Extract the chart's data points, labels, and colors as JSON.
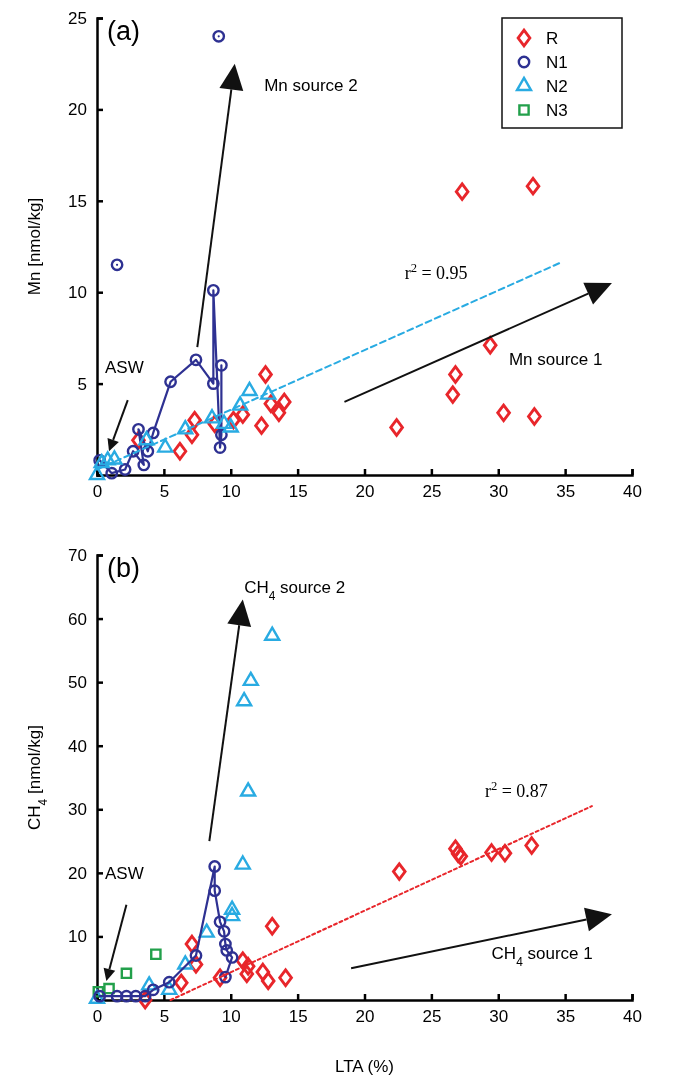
{
  "chart_data": [
    {
      "type": "scatter",
      "title": "(a)",
      "ylabel": "Mn [nmol/kg]",
      "xlim": [
        0,
        40
      ],
      "ylim": [
        0,
        25
      ],
      "xticks": [
        0,
        5,
        10,
        15,
        20,
        25,
        30,
        35,
        40
      ],
      "yticks": [
        {
          "value": 0,
          "label": null
        },
        5,
        10,
        15,
        20,
        25
      ],
      "legend": "top right",
      "annotations": [
        "r$^{2}$ = 0.95",
        "Mn source 2",
        "Mn source 1",
        "ASW"
      ],
      "series": [
        {
          "name": "R",
          "color": "#e8262b",
          "marker": "diamond",
          "x": [
            3.1,
            6.2,
            7.3,
            7.1,
            8.8,
            10.2,
            10.9,
            12.6,
            12.3,
            13,
            14,
            13.6,
            22.4,
            26.8,
            26.6,
            29.4,
            30.4,
            32.7,
            27.3,
            32.6
          ],
          "values": [
            1.9,
            1.3,
            3.0,
            2.2,
            2.8,
            3.0,
            3.3,
            5.5,
            2.7,
            3.9,
            4.0,
            3.4,
            2.6,
            5.5,
            4.4,
            7.1,
            3.4,
            3.2,
            15.5,
            15.8
          ]
        },
        {
          "name": "N1",
          "color": "#2e3192",
          "type": "line",
          "marker": "circle",
          "x": [
            1.5,
            null,
            9.1,
            null,
            0.2,
            1.1,
            2.1,
            2.7,
            3.5,
            3.1,
            3.8,
            4.2,
            5.5,
            7.4,
            8.7,
            8.7,
            9.2,
            9.3,
            9.3
          ],
          "values": [
            11.5,
            null,
            24,
            null,
            0.8,
            0.1,
            0.3,
            1.3,
            0.55,
            2.5,
            1.3,
            2.3,
            5.1,
            6.3,
            5.0,
            10.1,
            1.5,
            2.2,
            6.0
          ]
        },
        {
          "name": "N2",
          "color": "#29abe2",
          "marker": "triangle",
          "x": [
            0,
            0.35,
            0.8,
            1.3,
            3.7,
            5.1,
            6.6,
            8.6,
            9.5,
            10,
            10.7,
            11.4,
            12.8
          ],
          "values": [
            0,
            0.65,
            0.8,
            0.85,
            1.9,
            1.5,
            2.5,
            3.1,
            2.8,
            2.6,
            3.8,
            4.6,
            4.4
          ]
        },
        {
          "name": "N3",
          "color": "#22a04b",
          "marker": "square"
        },
        {
          "type": "line",
          "color": "#29abe2",
          "marker": "none",
          "line_style": "dashed",
          "x": [
            0,
            34.6
          ],
          "values": [
            0.3,
            11.6
          ]
        }
      ]
    },
    {
      "type": "scatter",
      "title": "(b)",
      "xlabel": "LTA (%)",
      "ylabel": "CH$_{4}$ [nmol/kg]",
      "xlim": [
        0,
        40
      ],
      "ylim": [
        0,
        70
      ],
      "xticks": [
        0,
        5,
        10,
        15,
        20,
        25,
        30,
        35,
        40
      ],
      "yticks": [
        {
          "value": 0,
          "label": null
        },
        10,
        20,
        30,
        40,
        50,
        60,
        70
      ],
      "legend": false,
      "annotations": [
        "r$^{2}$ = 0.87",
        "CH$_{4}$ source 2",
        "CH$_{4}$ source 1",
        "ASW"
      ],
      "series": [
        {
          "color": "#e8262b",
          "marker": "diamond",
          "x": [
            3.6,
            6.3,
            7.1,
            7.4,
            9.2,
            10.9,
            11.3,
            11.2,
            13.1,
            12.4,
            12.8,
            14.1,
            22.6,
            26.8,
            27,
            27.2,
            29.5,
            30.5,
            32.5
          ],
          "values": [
            0,
            2.7,
            8.8,
            5.6,
            3.5,
            6.2,
            5.3,
            4.1,
            11.6,
            4.4,
            3.0,
            3.5,
            20.2,
            23.8,
            23.0,
            22.6,
            23.2,
            23.1,
            24.3
          ]
        },
        {
          "color": "#22a04b",
          "marker": "square",
          "x": [
            0.1,
            0.9,
            2.2,
            4.4
          ],
          "values": [
            1.3,
            1.8,
            4.2,
            7.2
          ]
        },
        {
          "color": "#29abe2",
          "marker": "triangle",
          "x": [
            0,
            3.9,
            5.4,
            6.6,
            8.2,
            10.1,
            10.1,
            10.9,
            11.3,
            11.0,
            11.5,
            13.1
          ],
          "values": [
            0.2,
            2.3,
            1.6,
            5.6,
            10.6,
            13.2,
            14.2,
            21.3,
            32.8,
            47.0,
            50.2,
            57.3
          ]
        },
        {
          "color": "#2e3192",
          "type": "line",
          "marker": "circle",
          "x": [
            0.2,
            1.5,
            2.2,
            2.9,
            3.6,
            4.2,
            5.4,
            7.4,
            8.8,
            8.8,
            9.2,
            9.5,
            9.6,
            9.7,
            10.1,
            9.6
          ],
          "values": [
            0.6,
            0.6,
            0.6,
            0.6,
            0.6,
            1.6,
            2.8,
            7.0,
            21,
            17.2,
            12.3,
            10.8,
            8.8,
            7.8,
            6.7,
            3.6
          ]
        },
        {
          "type": "line",
          "color": "#e8262b",
          "marker": "none",
          "line_style": "dotted",
          "x": [
            5.5,
            37
          ],
          "values": [
            0,
            30.5
          ]
        }
      ]
    }
  ]
}
